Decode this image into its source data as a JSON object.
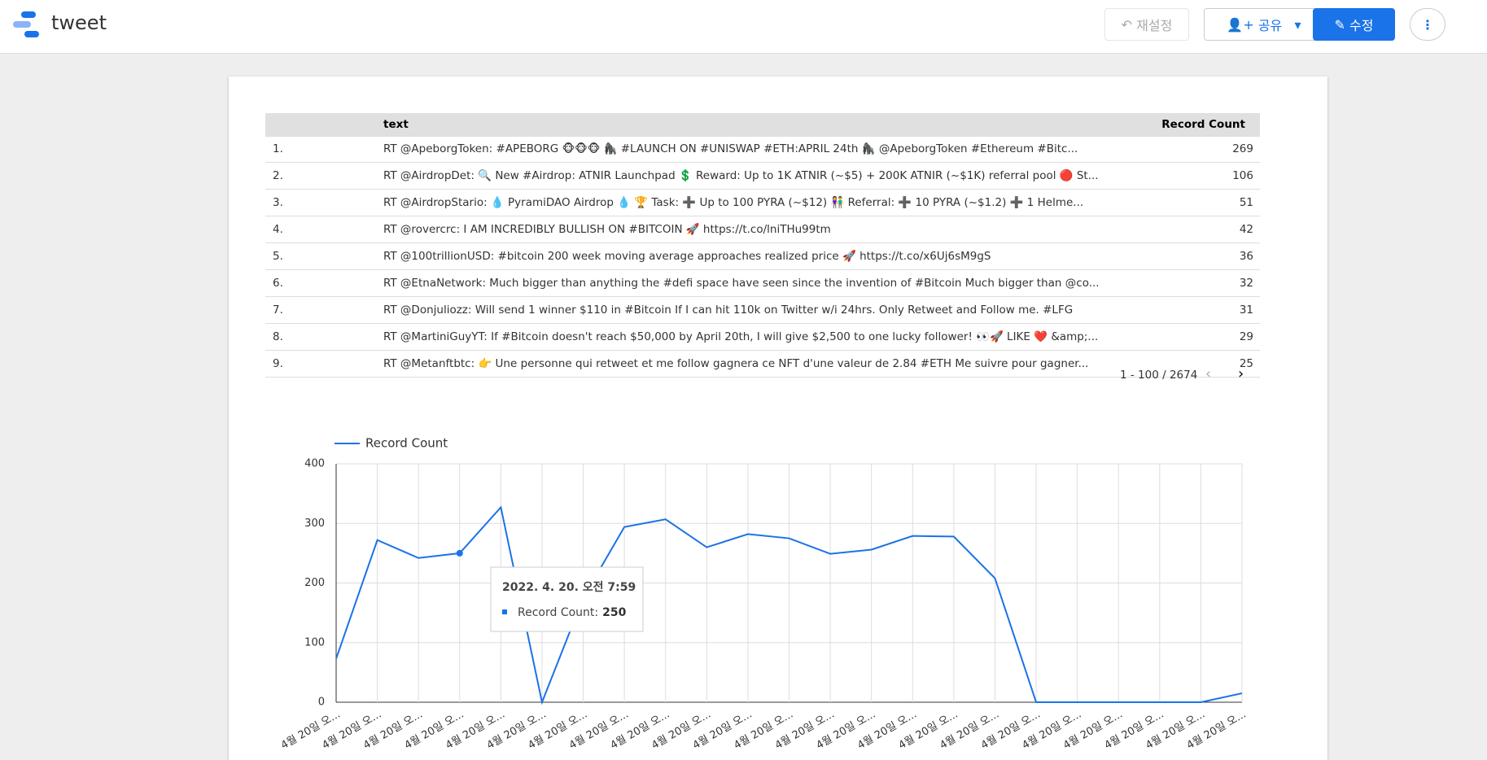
{
  "header": {
    "title": "tweet",
    "reset": "재설정",
    "share": "공유",
    "edit": "수정"
  },
  "table": {
    "columns": [
      "text",
      "Record Count"
    ],
    "rows": [
      [
        "1.",
        "RT @ApeborgToken: #APEBORG 🐵🐵🐵 🦍 #LAUNCH ON #UNISWAP #ETH:APRIL 24th 🦍 @ApeborgToken #Ethereum #Bitc...",
        "269"
      ],
      [
        "2.",
        "RT @AirdropDet: 🔍 New #Airdrop: ATNIR Launchpad 💲 Reward: Up to 1K ATNIR (~$5) + 200K ATNIR (~$1K) referral pool 🔴 St...",
        "106"
      ],
      [
        "3.",
        "RT @AirdropStario: 💧 PyramiDAO Airdrop 💧 🏆 Task: ➕ Up to 100 PYRA (~$12) 👫 Referral: ➕ 10 PYRA (~$1.2) ➕ 1 Helme...",
        "51"
      ],
      [
        "4.",
        "RT @rovercrc: I AM INCREDIBLY BULLISH ON #BITCOIN 🚀 https://t.co/lniTHu99tm",
        "42"
      ],
      [
        "5.",
        "RT @100trillionUSD: #bitcoin 200 week moving average approaches realized price 🚀 https://t.co/x6Uj6sM9gS",
        "36"
      ],
      [
        "6.",
        "RT @EtnaNetwork: Much bigger than anything the #defi space have seen since the invention of #Bitcoin Much bigger than @co...",
        "32"
      ],
      [
        "7.",
        "RT @Donjuliozz: Will send 1 winner $110 in #Bitcoin If I can hit 110k on Twitter w/i 24hrs. Only Retweet and Follow me. #LFG",
        "31"
      ],
      [
        "8.",
        "RT @MartiniGuyYT: If #Bitcoin  doesn't reach $50,000 by April 20th, I will give $2,500 to one lucky follower! 👀🚀 LIKE ❤️ &amp;...",
        "29"
      ],
      [
        "9.",
        "RT @Metanftbtc: 👉 Une personne qui retweet et me follow gagnera ce NFT d'une valeur de 2.84 #ETH Me suivre pour gagner...",
        "25"
      ]
    ],
    "pagination": "1 - 100 / 2674"
  },
  "chart_data": {
    "type": "line",
    "categories": [
      "4월 20일 오...",
      "4월 20일 오...",
      "4월 20일 오...",
      "4월 20일 오...",
      "4월 20일 오...",
      "4월 20일 오...",
      "4월 20일 오...",
      "4월 20일 오...",
      "4월 20일 오...",
      "4월 20일 오...",
      "4월 20일 오...",
      "4월 20일 오...",
      "4월 20일 오...",
      "4월 20일 오...",
      "4월 20일 오...",
      "4월 20일 오...",
      "4월 20일 오...",
      "4월 20일 오...",
      "4월 20일 오...",
      "4월 20일 오...",
      "4월 20일 오...",
      "4월 20일 오...",
      "4월 20일 오..."
    ],
    "series": [
      {
        "name": "Record Count",
        "color": "#1a73e8",
        "values": [
          73,
          272,
          242,
          250,
          327,
          0,
          175,
          294,
          307,
          260,
          282,
          275,
          249,
          256,
          279,
          278,
          208,
          0,
          0,
          0,
          0,
          0,
          15
        ]
      }
    ],
    "ylim": [
      0,
      400
    ],
    "yticks": [
      0,
      100,
      200,
      300,
      400
    ],
    "grid": true,
    "tooltip": {
      "title": "2022. 4. 20. 오전 7:59",
      "label": "Record Count:"
    }
  }
}
